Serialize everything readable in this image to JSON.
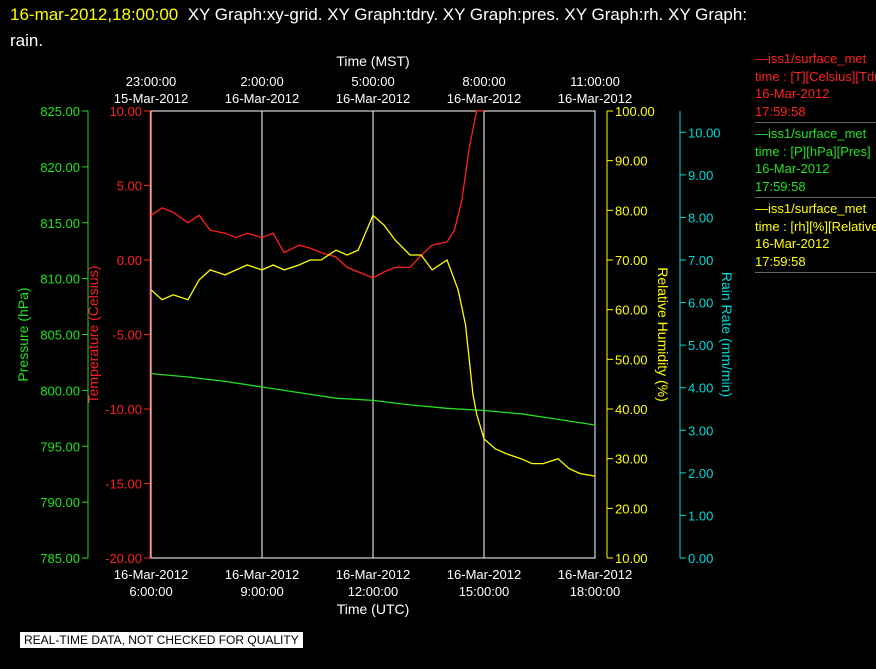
{
  "title": {
    "timestamp": "16-mar-2012,18:00:00",
    "graphs": "XY Graph:xy-grid.  XY Graph:tdry.  XY Graph:pres.  XY Graph:rh.  XY Graph:",
    "tail": "rain."
  },
  "banner": "REAL-TIME DATA, NOT CHECKED FOR QUALITY",
  "legend": [
    {
      "name": "—iss1/surface_met",
      "sub": "time : [T][Celsius][Tdry]",
      "date": "16-Mar-2012",
      "time": "17:59:58",
      "color": "#ff2020"
    },
    {
      "name": "—iss1/surface_met",
      "sub": "time : [P][hPa][Pres]",
      "date": "16-Mar-2012",
      "time": "17:59:58",
      "color": "#22e022"
    },
    {
      "name": "—iss1/surface_met",
      "sub": "time : [rh][%][Relative Humidity]",
      "date": "16-Mar-2012",
      "time": "17:59:58",
      "color": "#ffff00"
    }
  ],
  "chart_data": {
    "type": "line",
    "x_axis_bottom": {
      "label": "Time (UTC)",
      "ticks": [
        {
          "date": "16-Mar-2012",
          "time": "6:00:00"
        },
        {
          "date": "16-Mar-2012",
          "time": "9:00:00"
        },
        {
          "date": "16-Mar-2012",
          "time": "12:00:00"
        },
        {
          "date": "16-Mar-2012",
          "time": "15:00:00"
        },
        {
          "date": "16-Mar-2012",
          "time": "18:00:00"
        }
      ],
      "range_hours": [
        6,
        18
      ]
    },
    "x_axis_top": {
      "label": "Time (MST)",
      "ticks": [
        {
          "time": "23:00:00",
          "date": "15-Mar-2012"
        },
        {
          "time": "2:00:00",
          "date": "16-Mar-2012"
        },
        {
          "time": "5:00:00",
          "date": "16-Mar-2012"
        },
        {
          "time": "8:00:00",
          "date": "16-Mar-2012"
        },
        {
          "time": "11:00:00",
          "date": "16-Mar-2012"
        }
      ]
    },
    "y_axes": {
      "pressure": {
        "label": "Pressure (hPa)",
        "color": "#22e022",
        "range": [
          785,
          825
        ],
        "ticks": [
          "785.00",
          "790.00",
          "795.00",
          "800.00",
          "805.00",
          "810.00",
          "815.00",
          "820.00",
          "825.00"
        ]
      },
      "temperature": {
        "label": "Temperature (Celsius)",
        "color": "#ff2020",
        "range": [
          -20,
          10
        ],
        "ticks": [
          "-20.00",
          "-15.00",
          "-10.00",
          "-5.00",
          "0.00",
          "5.00",
          "10.00"
        ]
      },
      "humidity": {
        "label": "Relative Humidity (%)",
        "color": "#ffff00",
        "range": [
          10,
          100
        ],
        "ticks": [
          "10.00",
          "20.00",
          "30.00",
          "40.00",
          "50.00",
          "60.00",
          "70.00",
          "80.00",
          "90.00",
          "100.00"
        ]
      },
      "rain": {
        "label": "Rain Rate (mm/min)",
        "color": "#00d8d8",
        "range": [
          0,
          10.5
        ],
        "ticks": [
          "0.00",
          "1.00",
          "2.00",
          "3.00",
          "4.00",
          "5.00",
          "6.00",
          "7.00",
          "8.00",
          "9.00",
          "10.00"
        ]
      }
    },
    "grid": true,
    "series": [
      {
        "axis": "temperature",
        "color": "#ff2020",
        "x": [
          6,
          6.3,
          6.6,
          7,
          7.3,
          7.6,
          8,
          8.3,
          8.6,
          9,
          9.3,
          9.6,
          10,
          10.3,
          10.6,
          11,
          11.3,
          11.6,
          12,
          12.3,
          12.6,
          13,
          13.3,
          13.6,
          14,
          14.2,
          14.4,
          14.6,
          14.8,
          15
        ],
        "y": [
          3,
          3.5,
          3.2,
          2.5,
          3,
          2,
          1.8,
          1.5,
          1.8,
          1.5,
          1.8,
          0.5,
          1,
          0.8,
          0.5,
          0.2,
          -0.5,
          -0.8,
          -1.2,
          -0.8,
          -0.5,
          -0.5,
          0.3,
          1,
          1.2,
          2,
          4,
          7.5,
          10,
          10.3
        ]
      },
      {
        "axis": "pressure",
        "color": "#22e022",
        "x": [
          6,
          7,
          8,
          9,
          10,
          11,
          12,
          13,
          14,
          15,
          16,
          17,
          18
        ],
        "y": [
          801.5,
          801.2,
          800.8,
          800.3,
          799.8,
          799.3,
          799.1,
          798.7,
          798.4,
          798.2,
          797.9,
          797.4,
          796.9
        ]
      },
      {
        "axis": "humidity",
        "color": "#ffff00",
        "x": [
          6,
          6.3,
          6.6,
          7,
          7.3,
          7.6,
          8,
          8.3,
          8.6,
          9,
          9.3,
          9.6,
          10,
          10.3,
          10.6,
          11,
          11.3,
          11.6,
          12,
          12.3,
          12.6,
          13,
          13.3,
          13.6,
          14,
          14.3,
          14.5,
          14.7,
          14.8,
          15,
          15.3,
          15.6,
          16,
          16.3,
          16.6,
          17,
          17.3,
          17.6,
          18
        ],
        "y": [
          64,
          62,
          63,
          62,
          66,
          68,
          67,
          68,
          69,
          68,
          69,
          68,
          69,
          70,
          70,
          72,
          71,
          72,
          79,
          77,
          74,
          71,
          71,
          68,
          70,
          64,
          57,
          43,
          39,
          34,
          32,
          31,
          30,
          29,
          29,
          30,
          28,
          27,
          26.5
        ]
      }
    ]
  }
}
